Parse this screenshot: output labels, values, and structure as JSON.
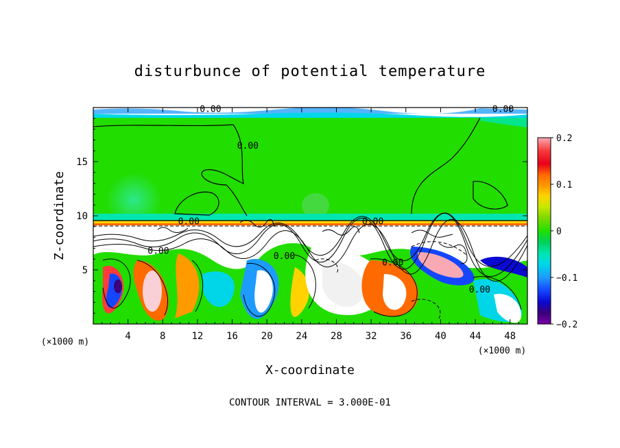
{
  "chart_data": {
    "type": "heatmap",
    "title": "disturbunce of potential temperature",
    "xlabel": "X-coordinate",
    "ylabel": "Z-coordinate",
    "x_unit": "(×1000 m)",
    "x_unit_right": "(×1000 m)",
    "footer": "CONTOUR INTERVAL = 3.000E-01",
    "xlim": [
      0,
      50
    ],
    "ylim": [
      0,
      20
    ],
    "x_ticks": [
      4,
      8,
      12,
      16,
      20,
      24,
      28,
      32,
      36,
      40,
      44,
      48
    ],
    "y_ticks": [
      5,
      10,
      15
    ],
    "colorbar": {
      "range": [
        -0.2,
        0.2
      ],
      "tick_values": [
        0.2,
        0.1,
        0,
        -0.1,
        -0.2
      ],
      "tick_labels": [
        "0.2",
        "0.1",
        "0",
        "−0.1",
        "−0.2"
      ],
      "colors": [
        "#f9a9b3",
        "#f73b3b",
        "#e8001a",
        "#ff6a00",
        "#ff9a00",
        "#ffd200",
        "#c8e800",
        "#7ed900",
        "#22e000",
        "#00d05a",
        "#00e6b0",
        "#00d6e8",
        "#1e9bff",
        "#1446ff",
        "#0a0ad2",
        "#3a007a",
        "#7a00aa"
      ]
    },
    "contour_labels": [
      {
        "text": "0.00",
        "x": 13.5,
        "y": 19.6
      },
      {
        "text": "0.00",
        "x": 47.2,
        "y": 19.6
      },
      {
        "text": "0.00",
        "x": 17.8,
        "y": 16.2
      },
      {
        "text": "0.00",
        "x": 11.0,
        "y": 9.2
      },
      {
        "text": "0.00",
        "x": 32.2,
        "y": 9.2
      },
      {
        "text": "0.00",
        "x": 7.5,
        "y": 6.5
      },
      {
        "text": "0.00",
        "x": 22.0,
        "y": 6.0
      },
      {
        "text": "0.00",
        "x": 34.5,
        "y": 5.4
      },
      {
        "text": "0.00",
        "x": 44.5,
        "y": 2.9
      }
    ],
    "grid": false
  }
}
